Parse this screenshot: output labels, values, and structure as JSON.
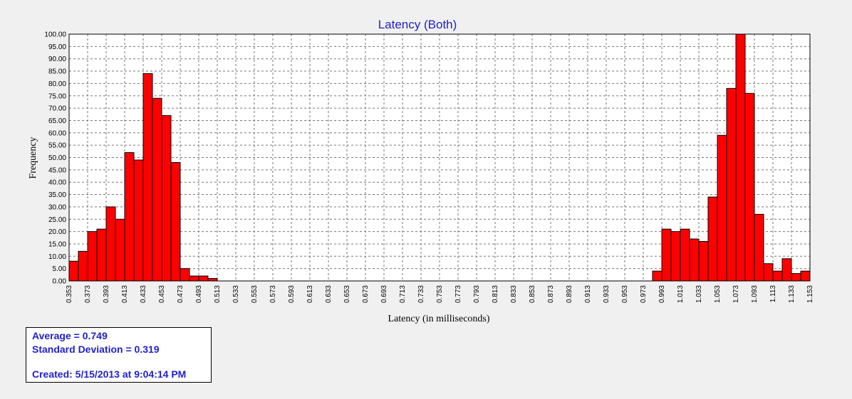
{
  "chart_data": {
    "type": "bar",
    "title": "Latency (Both)",
    "xlabel": "Latency (in milliseconds)",
    "ylabel": "Frequency",
    "ylim": [
      0,
      100
    ],
    "y_ticks": [
      "0.00",
      "5.00",
      "10.00",
      "15.00",
      "20.00",
      "25.00",
      "30.00",
      "35.00",
      "40.00",
      "45.00",
      "50.00",
      "55.00",
      "60.00",
      "65.00",
      "70.00",
      "75.00",
      "80.00",
      "85.00",
      "90.00",
      "95.00",
      "100.00"
    ],
    "x_ticks": [
      "0.353",
      "0.373",
      "0.393",
      "0.413",
      "0.433",
      "0.453",
      "0.473",
      "0.493",
      "0.513",
      "0.533",
      "0.553",
      "0.573",
      "0.593",
      "0.613",
      "0.633",
      "0.653",
      "0.673",
      "0.693",
      "0.713",
      "0.733",
      "0.753",
      "0.773",
      "0.793",
      "0.813",
      "0.833",
      "0.853",
      "0.873",
      "0.893",
      "0.913",
      "0.933",
      "0.953",
      "0.973",
      "0.993",
      "1.013",
      "1.033",
      "1.053",
      "1.073",
      "1.093",
      "1.113",
      "1.133",
      "1.153"
    ],
    "bin_start": 0.353,
    "bin_width": 0.01,
    "values": [
      8,
      12,
      20,
      21,
      30,
      25,
      52,
      49,
      84,
      74,
      67,
      48,
      5,
      2,
      2,
      1,
      0,
      0,
      0,
      0,
      0,
      0,
      0,
      0,
      0,
      0,
      0,
      0,
      0,
      0,
      0,
      0,
      0,
      0,
      0,
      0,
      0,
      0,
      0,
      0,
      0,
      0,
      0,
      0,
      0,
      0,
      0,
      0,
      0,
      0,
      0,
      0,
      0,
      0,
      0,
      0,
      0,
      0,
      0,
      0,
      0,
      0,
      0,
      4,
      21,
      20,
      21,
      17,
      16,
      34,
      59,
      78,
      100,
      76,
      27,
      7,
      4,
      9,
      3,
      4
    ],
    "grid": true,
    "bar_color": "#ff0000",
    "title_color": "#1f1fcf"
  },
  "stats": {
    "average": "Average = 0.749",
    "std_dev": "Standard Deviation = 0.319",
    "created": "Created: 5/15/2013 at 9:04:14 PM"
  }
}
